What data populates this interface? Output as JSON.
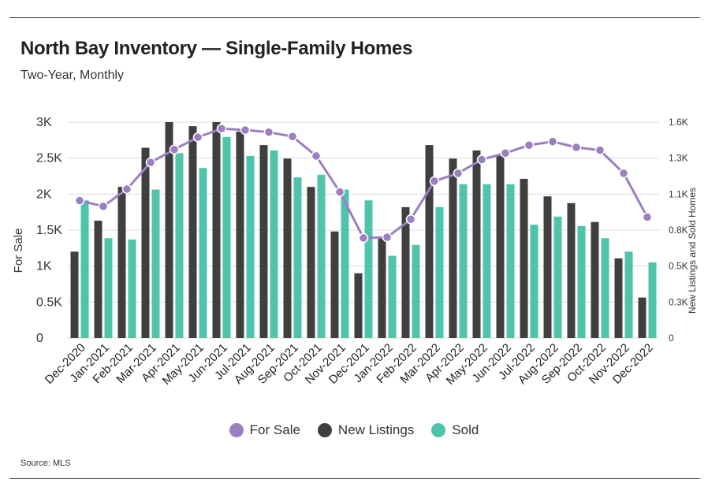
{
  "header": {
    "title": "North Bay Inventory — Single-Family Homes",
    "subtitle": "Two-Year, Monthly"
  },
  "footer": {
    "source": "Source: MLS"
  },
  "chart_data": {
    "type": "bar",
    "title": "North Bay Inventory — Single-Family Homes",
    "subtitle": "Two-Year, Monthly",
    "categories": [
      "Dec-2020",
      "Jan-2021",
      "Feb-2021",
      "Mar-2021",
      "Apr-2021",
      "May-2021",
      "Jun-2021",
      "Jul-2021",
      "Aug-2021",
      "Sep-2021",
      "Oct-2021",
      "Nov-2021",
      "Dec-2021",
      "Jan-2022",
      "Feb-2022",
      "Mar-2022",
      "Apr-2022",
      "May-2022",
      "Jun-2022",
      "Jul-2022",
      "Aug-2022",
      "Sep-2022",
      "Oct-2022",
      "Nov-2022",
      "Dec-2022"
    ],
    "ylabel": "For Sale",
    "ylabel_right": "New Listings and Sold Homes",
    "ylim": [
      0,
      3000
    ],
    "ylim_right": [
      0,
      1600
    ],
    "yticks": [
      "0",
      "0.5K",
      "1K",
      "1.5K",
      "2K",
      "2.5K",
      "3K"
    ],
    "yticks_right": [
      "0",
      "0.3K",
      "0.5K",
      "0.8K",
      "1.1K",
      "1.3K",
      "1.6K"
    ],
    "legend_position": "bottom",
    "grid": true,
    "series": [
      {
        "name": "For Sale",
        "type": "line",
        "axis": "left",
        "color": "#9b7fc0",
        "values": [
          1910,
          1830,
          2070,
          2440,
          2620,
          2790,
          2910,
          2890,
          2860,
          2800,
          2530,
          2030,
          1390,
          1400,
          1650,
          2180,
          2290,
          2480,
          2570,
          2680,
          2730,
          2650,
          2610,
          2290,
          1680
        ]
      },
      {
        "name": "New Listings",
        "type": "bar",
        "axis": "right",
        "color": "#3f3f3f",
        "values": [
          640,
          870,
          1120,
          1410,
          1600,
          1570,
          1600,
          1530,
          1430,
          1330,
          1120,
          790,
          480,
          740,
          970,
          1430,
          1330,
          1390,
          1350,
          1180,
          1050,
          1000,
          860,
          590,
          300
        ]
      },
      {
        "name": "Sold",
        "type": "bar",
        "axis": "right",
        "color": "#4fc3ab",
        "values": [
          1020,
          740,
          730,
          1100,
          1370,
          1260,
          1490,
          1350,
          1390,
          1190,
          1210,
          1100,
          1020,
          610,
          690,
          970,
          1140,
          1140,
          1140,
          840,
          900,
          830,
          740,
          640,
          560
        ]
      }
    ]
  }
}
